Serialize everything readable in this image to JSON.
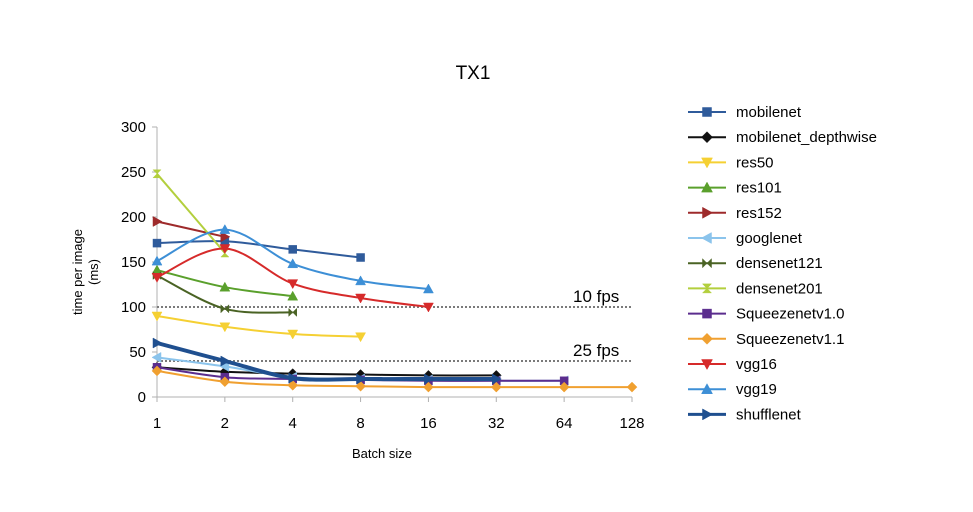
{
  "chart_data": {
    "type": "line",
    "title": "TX1",
    "xlabel": "Batch size",
    "ylabel": "time per image (ms)",
    "ylabel_lines": [
      "time per image",
      "(ms)"
    ],
    "x_scale": "log2",
    "x_ticks": [
      1,
      2,
      4,
      8,
      16,
      32,
      64,
      128
    ],
    "y_ticks": [
      0,
      50,
      100,
      150,
      200,
      250,
      300
    ],
    "ylim": [
      0,
      300
    ],
    "xlim": [
      1,
      128
    ],
    "grid": false,
    "legend_position": "right",
    "reference_lines": [
      {
        "label": "10 fps",
        "y": 100
      },
      {
        "label": "25 fps",
        "y": 40
      }
    ],
    "series": [
      {
        "name": "mobilenet",
        "color": "#2f5b9b",
        "marker": "square",
        "x": [
          1,
          2,
          4,
          8
        ],
        "y": [
          171,
          173,
          164,
          155
        ]
      },
      {
        "name": "mobilenet_depthwise",
        "color": "#111111",
        "marker": "diamond",
        "x": [
          1,
          2,
          4,
          8,
          16,
          32
        ],
        "y": [
          33,
          28,
          26,
          25,
          24,
          24
        ]
      },
      {
        "name": "res50",
        "color": "#f5d033",
        "marker": "triangle-down",
        "x": [
          1,
          2,
          4,
          8
        ],
        "y": [
          90,
          78,
          70,
          67
        ]
      },
      {
        "name": "res101",
        "color": "#5aa02c",
        "marker": "triangle-up",
        "x": [
          1,
          2,
          4
        ],
        "y": [
          141,
          122,
          112
        ]
      },
      {
        "name": "res152",
        "color": "#9e2a2b",
        "marker": "triangle-right",
        "x": [
          1,
          2
        ],
        "y": [
          195,
          178
        ]
      },
      {
        "name": "googlenet",
        "color": "#8bc4ec",
        "marker": "triangle-left",
        "x": [
          1,
          2,
          4,
          8,
          16,
          32,
          64
        ],
        "y": [
          44,
          34,
          22,
          20,
          19,
          18,
          18
        ]
      },
      {
        "name": "densenet121",
        "color": "#4a6324",
        "marker": "bowtie",
        "x": [
          1,
          2,
          4
        ],
        "y": [
          135,
          98,
          94
        ]
      },
      {
        "name": "densenet201",
        "color": "#b3cf3d",
        "marker": "hourglass",
        "x": [
          1,
          2
        ],
        "y": [
          248,
          160
        ]
      },
      {
        "name": "Squeezenetv1.0",
        "color": "#5b2d8e",
        "marker": "square",
        "x": [
          1,
          2,
          4,
          8,
          16,
          32,
          64
        ],
        "y": [
          33,
          22,
          20,
          19,
          18,
          18,
          18
        ]
      },
      {
        "name": "Squeezenetv1.1",
        "color": "#f0a030",
        "marker": "diamond",
        "x": [
          1,
          2,
          4,
          8,
          16,
          32,
          64,
          128
        ],
        "y": [
          29,
          17,
          13,
          12,
          11,
          11,
          11,
          11
        ]
      },
      {
        "name": "vgg16",
        "color": "#d62a2a",
        "marker": "triangle-down",
        "x": [
          1,
          2,
          4,
          8,
          16
        ],
        "y": [
          133,
          165,
          126,
          110,
          100
        ]
      },
      {
        "name": "vgg19",
        "color": "#3d8fd6",
        "marker": "triangle-up",
        "x": [
          1,
          2,
          4,
          8,
          16
        ],
        "y": [
          151,
          186,
          148,
          129,
          120
        ]
      },
      {
        "name": "shufflenet",
        "color": "#1f4f8f",
        "marker": "triangle-right",
        "width": 4,
        "x": [
          1,
          2,
          4,
          8,
          16,
          32
        ],
        "y": [
          60,
          40,
          21,
          20,
          20,
          20
        ]
      }
    ]
  }
}
